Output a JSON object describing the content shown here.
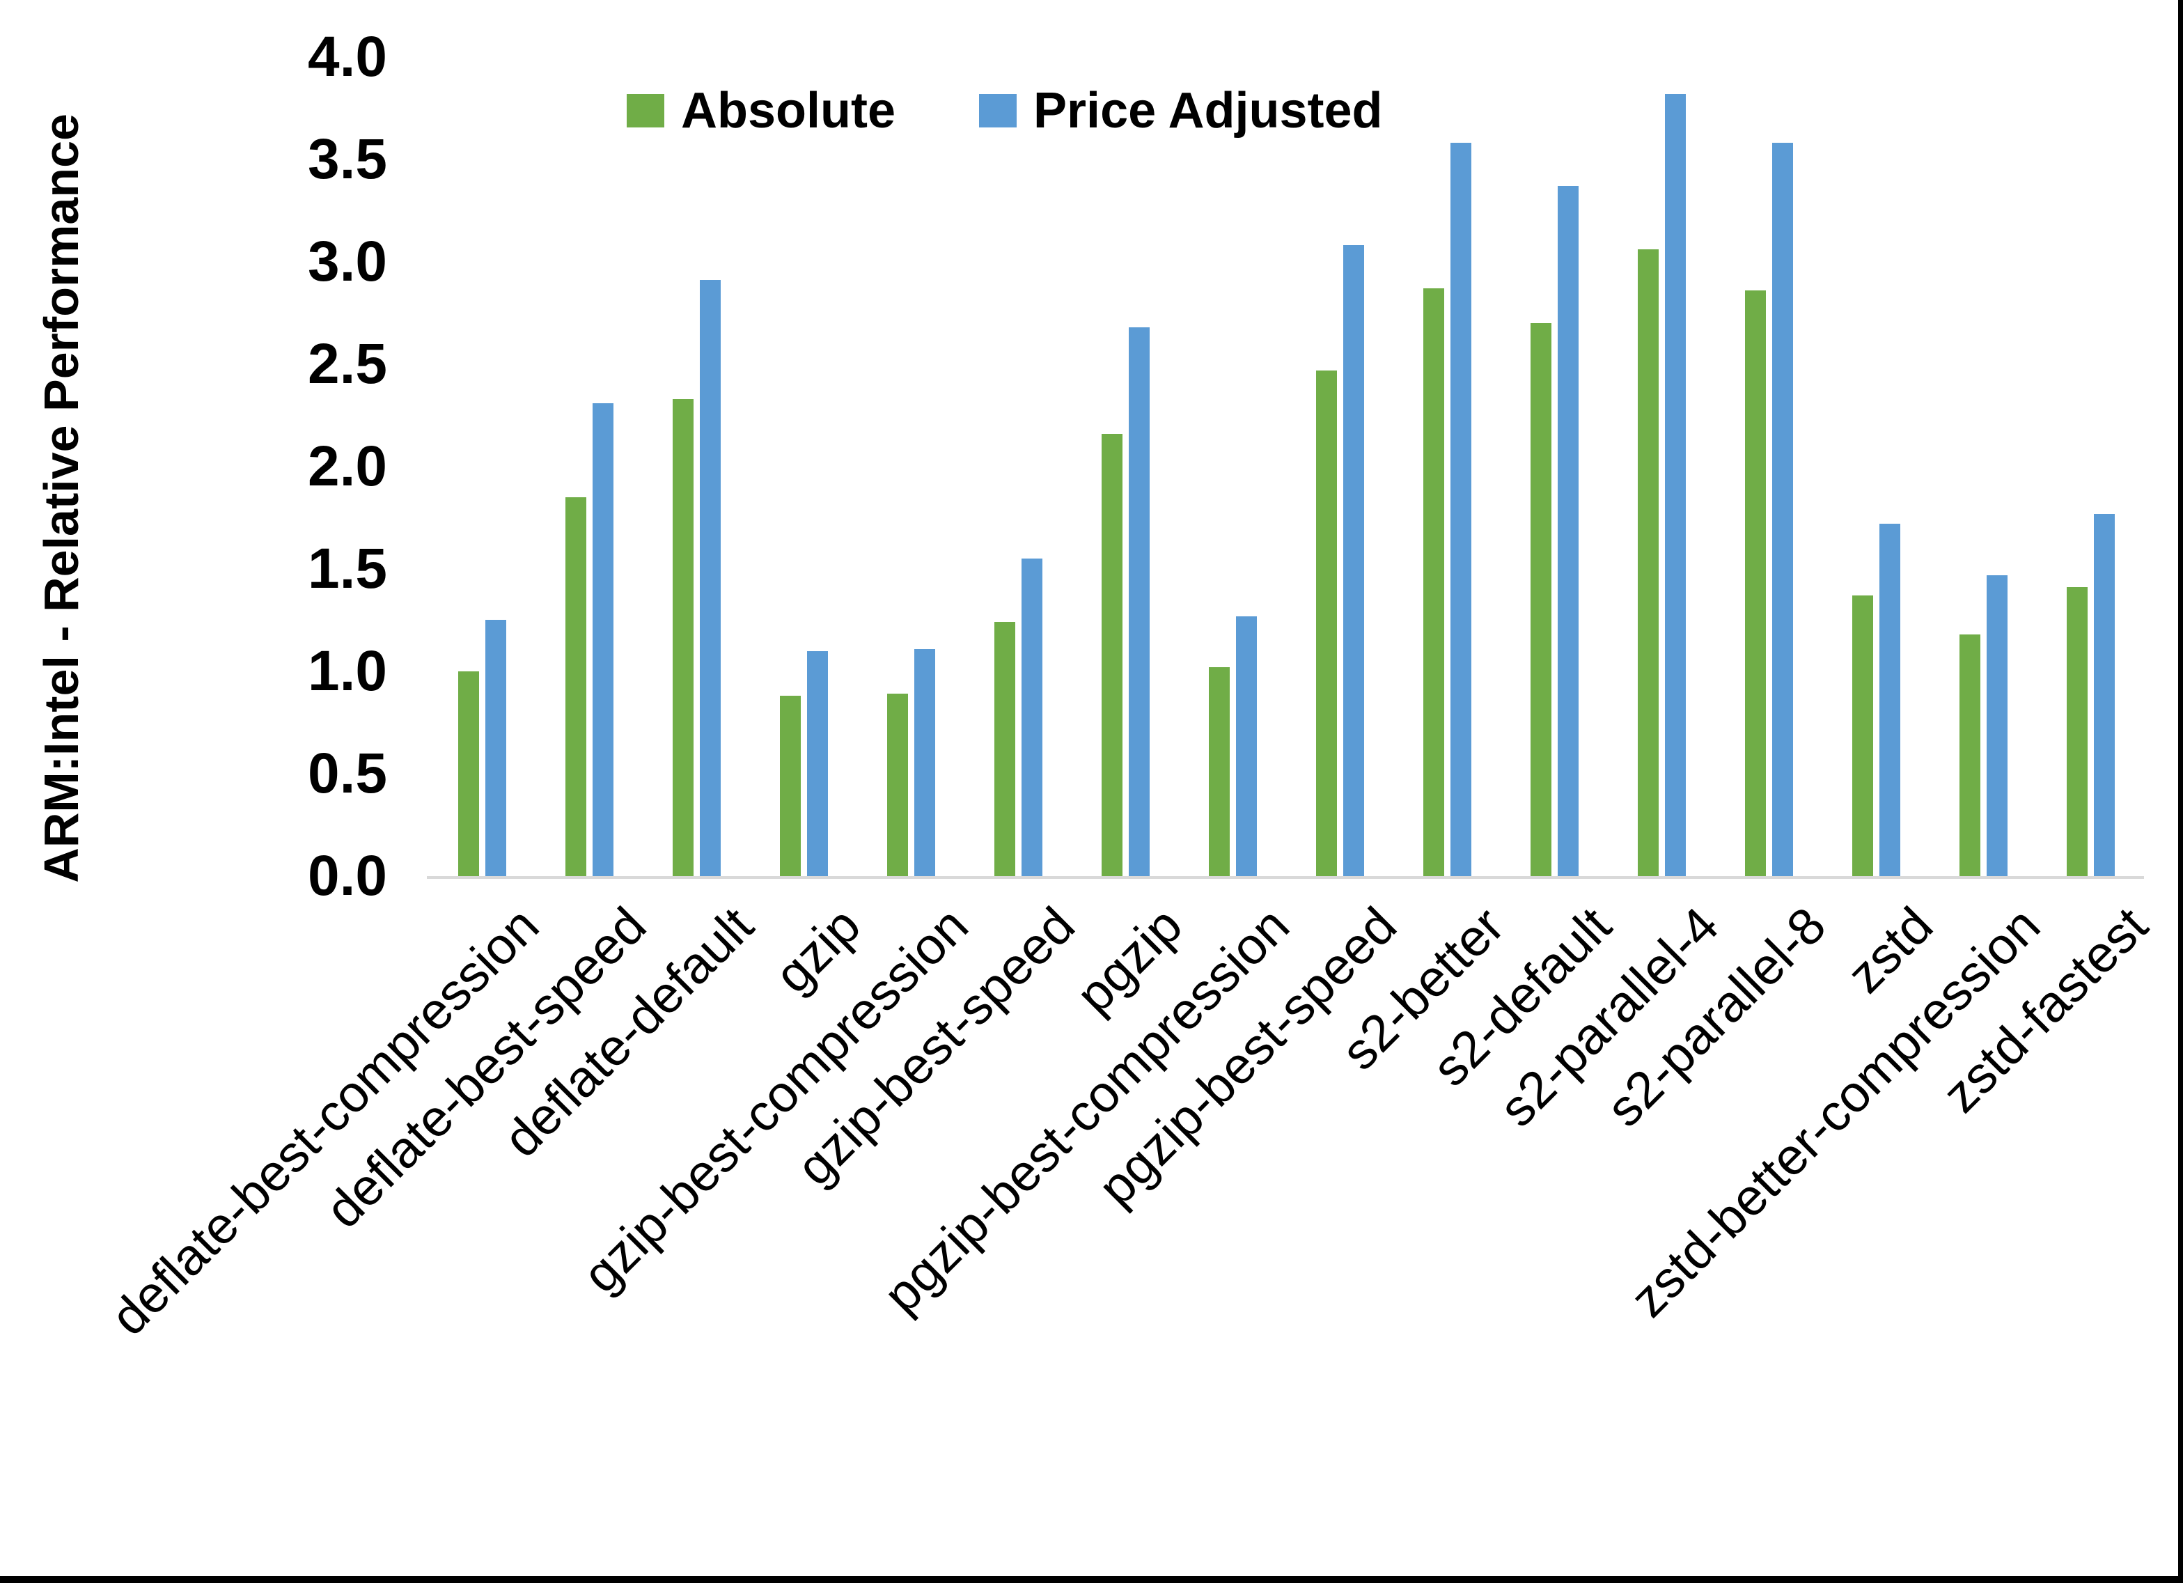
{
  "chart_data": {
    "type": "bar",
    "title": "",
    "xlabel": "",
    "ylabel": "ARM:Intel - Relative Performance",
    "ylim": [
      0.0,
      4.0
    ],
    "ytick_step": 0.5,
    "yticks": [
      "0.0",
      "0.5",
      "1.0",
      "1.5",
      "2.0",
      "2.5",
      "3.0",
      "3.5",
      "4.0"
    ],
    "grid": false,
    "legend_position": "top-center",
    "axis_line_color": "#d9d9d9",
    "categories": [
      "deflate-best-compression",
      "deflate-best-speed",
      "deflate-default",
      "gzip",
      "gzip-best-compression",
      "gzip-best-speed",
      "pgzip",
      "pgzip-best-compression",
      "pgzip-best-speed",
      "s2-better",
      "s2-default",
      "s2-parallel-4",
      "s2-parallel-8",
      "zstd",
      "zstd-better-compression",
      "zstd-fastest"
    ],
    "series": [
      {
        "name": "Absolute",
        "color": "#70AD47",
        "values": [
          1.0,
          1.85,
          2.33,
          0.88,
          0.89,
          1.24,
          2.16,
          1.02,
          2.47,
          2.87,
          2.7,
          3.06,
          2.86,
          1.37,
          1.18,
          1.41
        ]
      },
      {
        "name": "Price Adjusted",
        "color": "#5B9BD5",
        "values": [
          1.25,
          2.31,
          2.91,
          1.1,
          1.11,
          1.55,
          2.68,
          1.27,
          3.08,
          3.58,
          3.37,
          3.82,
          3.58,
          1.72,
          1.47,
          1.77
        ]
      }
    ]
  },
  "y_axis": {
    "title": "ARM:Intel - Relative Performance"
  },
  "legend": {
    "absolute_label": "Absolute",
    "price_adjusted_label": "Price Adjusted"
  }
}
